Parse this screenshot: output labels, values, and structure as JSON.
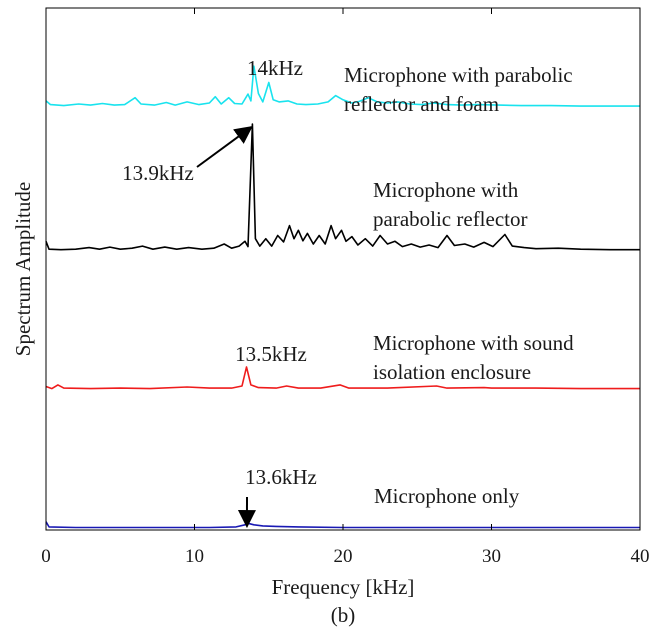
{
  "chart_data": {
    "type": "line",
    "title": "",
    "caption": "(b)",
    "xlabel": "Frequency [kHz]",
    "ylabel": "Spectrum Amplitude",
    "xlim": [
      0,
      40
    ],
    "xticks": [
      0,
      10,
      20,
      30,
      40
    ],
    "ylim": [
      0,
      1
    ],
    "grid": false,
    "legend": "none (series labelled by text annotations)",
    "series": [
      {
        "key": "foam",
        "name": "Microphone with parabolic reflector and foam",
        "color": "#19e3ee",
        "baseline": 0.802,
        "points": [
          [
            0,
            0.812
          ],
          [
            0.3,
            0.805
          ],
          [
            1.2,
            0.803
          ],
          [
            2.2,
            0.806
          ],
          [
            3,
            0.804
          ],
          [
            3.8,
            0.807
          ],
          [
            4.6,
            0.804
          ],
          [
            5.3,
            0.805
          ],
          [
            6.0,
            0.818
          ],
          [
            6.4,
            0.806
          ],
          [
            7.3,
            0.804
          ],
          [
            8.1,
            0.809
          ],
          [
            8.7,
            0.804
          ],
          [
            9.5,
            0.81
          ],
          [
            10.3,
            0.805
          ],
          [
            11.0,
            0.808
          ],
          [
            11.4,
            0.82
          ],
          [
            11.8,
            0.806
          ],
          [
            12.3,
            0.818
          ],
          [
            12.7,
            0.807
          ],
          [
            13.2,
            0.806
          ],
          [
            13.6,
            0.825
          ],
          [
            13.8,
            0.812
          ],
          [
            14.0,
            0.878
          ],
          [
            14.3,
            0.826
          ],
          [
            14.6,
            0.81
          ],
          [
            15.0,
            0.847
          ],
          [
            15.3,
            0.814
          ],
          [
            15.7,
            0.81
          ],
          [
            16.3,
            0.812
          ],
          [
            16.9,
            0.806
          ],
          [
            17.5,
            0.805
          ],
          [
            18.3,
            0.806
          ],
          [
            19.0,
            0.81
          ],
          [
            19.5,
            0.822
          ],
          [
            20.0,
            0.814
          ],
          [
            20.6,
            0.808
          ],
          [
            21.1,
            0.811
          ],
          [
            21.7,
            0.818
          ],
          [
            22.3,
            0.81
          ],
          [
            23.0,
            0.808
          ],
          [
            23.7,
            0.81
          ],
          [
            24.5,
            0.806
          ],
          [
            25.3,
            0.805
          ],
          [
            26.1,
            0.808
          ],
          [
            27.0,
            0.805
          ],
          [
            28.0,
            0.804
          ],
          [
            29.0,
            0.805
          ],
          [
            30.5,
            0.804
          ],
          [
            32,
            0.803
          ],
          [
            34,
            0.803
          ],
          [
            36,
            0.802
          ],
          [
            38,
            0.802
          ],
          [
            40,
            0.802
          ]
        ]
      },
      {
        "key": "reflector",
        "name": "Microphone with parabolic reflector",
        "color": "#000000",
        "baseline": 0.528,
        "points": [
          [
            0,
            0.545
          ],
          [
            0.2,
            0.53
          ],
          [
            1,
            0.529
          ],
          [
            2,
            0.53
          ],
          [
            2.9,
            0.533
          ],
          [
            3.6,
            0.53
          ],
          [
            4.3,
            0.534
          ],
          [
            5,
            0.53
          ],
          [
            5.8,
            0.532
          ],
          [
            6.5,
            0.536
          ],
          [
            7.2,
            0.53
          ],
          [
            8,
            0.534
          ],
          [
            8.8,
            0.53
          ],
          [
            9.6,
            0.533
          ],
          [
            10.5,
            0.53
          ],
          [
            11.3,
            0.532
          ],
          [
            12,
            0.54
          ],
          [
            12.5,
            0.532
          ],
          [
            13.0,
            0.536
          ],
          [
            13.4,
            0.545
          ],
          [
            13.6,
            0.535
          ],
          [
            13.9,
            0.768
          ],
          [
            14.1,
            0.55
          ],
          [
            14.4,
            0.536
          ],
          [
            14.8,
            0.55
          ],
          [
            15.2,
            0.536
          ],
          [
            15.6,
            0.556
          ],
          [
            16.0,
            0.544
          ],
          [
            16.4,
            0.575
          ],
          [
            16.7,
            0.55
          ],
          [
            17.0,
            0.566
          ],
          [
            17.3,
            0.546
          ],
          [
            17.6,
            0.56
          ],
          [
            18.0,
            0.54
          ],
          [
            18.4,
            0.556
          ],
          [
            18.8,
            0.54
          ],
          [
            19.2,
            0.575
          ],
          [
            19.5,
            0.55
          ],
          [
            19.9,
            0.566
          ],
          [
            20.2,
            0.545
          ],
          [
            20.6,
            0.554
          ],
          [
            21.0,
            0.538
          ],
          [
            21.5,
            0.55
          ],
          [
            22.0,
            0.536
          ],
          [
            22.5,
            0.556
          ],
          [
            23.0,
            0.54
          ],
          [
            23.5,
            0.545
          ],
          [
            24.0,
            0.535
          ],
          [
            24.6,
            0.54
          ],
          [
            25.2,
            0.534
          ],
          [
            25.8,
            0.538
          ],
          [
            26.4,
            0.533
          ],
          [
            27.0,
            0.556
          ],
          [
            27.5,
            0.537
          ],
          [
            28.2,
            0.54
          ],
          [
            28.8,
            0.534
          ],
          [
            29.5,
            0.543
          ],
          [
            30.1,
            0.535
          ],
          [
            30.9,
            0.558
          ],
          [
            31.4,
            0.536
          ],
          [
            32.2,
            0.533
          ],
          [
            33,
            0.531
          ],
          [
            34.5,
            0.532
          ],
          [
            36,
            0.53
          ],
          [
            38,
            0.529
          ],
          [
            40,
            0.529
          ]
        ]
      },
      {
        "key": "enclosure",
        "name": "Microphone with sound isolation enclosure",
        "color": "#ef1c1c",
        "baseline": 0.265,
        "points": [
          [
            0,
            0.269
          ],
          [
            0.4,
            0.265
          ],
          [
            0.8,
            0.272
          ],
          [
            1.2,
            0.266
          ],
          [
            3,
            0.265
          ],
          [
            5,
            0.266
          ],
          [
            7,
            0.265
          ],
          [
            9.5,
            0.268
          ],
          [
            11,
            0.266
          ],
          [
            12.5,
            0.266
          ],
          [
            13.2,
            0.27
          ],
          [
            13.5,
            0.306
          ],
          [
            13.8,
            0.272
          ],
          [
            14.3,
            0.267
          ],
          [
            15.5,
            0.266
          ],
          [
            16.2,
            0.27
          ],
          [
            17,
            0.266
          ],
          [
            18.5,
            0.266
          ],
          [
            19.8,
            0.272
          ],
          [
            20.4,
            0.266
          ],
          [
            23,
            0.266
          ],
          [
            26.3,
            0.27
          ],
          [
            27,
            0.266
          ],
          [
            29.5,
            0.267
          ],
          [
            30,
            0.266
          ],
          [
            33,
            0.266
          ],
          [
            36,
            0.265
          ],
          [
            40,
            0.265
          ]
        ]
      },
      {
        "key": "only",
        "name": "Microphone only",
        "color": "#1919b4",
        "baseline": 0.0,
        "points": [
          [
            0,
            0.012
          ],
          [
            0.2,
            0.002
          ],
          [
            2,
            0.001
          ],
          [
            5,
            0.001
          ],
          [
            8,
            0.001
          ],
          [
            11,
            0.001
          ],
          [
            12.8,
            0.002
          ],
          [
            13.4,
            0.006
          ],
          [
            13.6,
            0.009
          ],
          [
            14.0,
            0.006
          ],
          [
            14.6,
            0.004
          ],
          [
            15.5,
            0.003
          ],
          [
            17,
            0.002
          ],
          [
            20,
            0.001
          ],
          [
            25,
            0.001
          ],
          [
            30,
            0.001
          ],
          [
            35,
            0.001
          ],
          [
            40,
            0.001
          ]
        ]
      }
    ],
    "annotations": [
      {
        "text": "14kHz",
        "x": 14.0,
        "y": 0.878,
        "arrow": false
      },
      {
        "text": "13.9kHz",
        "x": 13.9,
        "y": 0.768,
        "arrow": true
      },
      {
        "text": "13.5kHz",
        "x": 13.5,
        "y": 0.306,
        "arrow": false
      },
      {
        "text": "13.6kHz",
        "x": 13.6,
        "y": 0.009,
        "arrow": true
      }
    ],
    "series_labels": {
      "foam": [
        "Microphone with parabolic",
        "reflector and foam"
      ],
      "reflector": [
        "Microphone with",
        "parabolic reflector"
      ],
      "enclosure": [
        "Microphone with sound",
        "isolation enclosure"
      ],
      "only": [
        "Microphone only"
      ]
    }
  }
}
